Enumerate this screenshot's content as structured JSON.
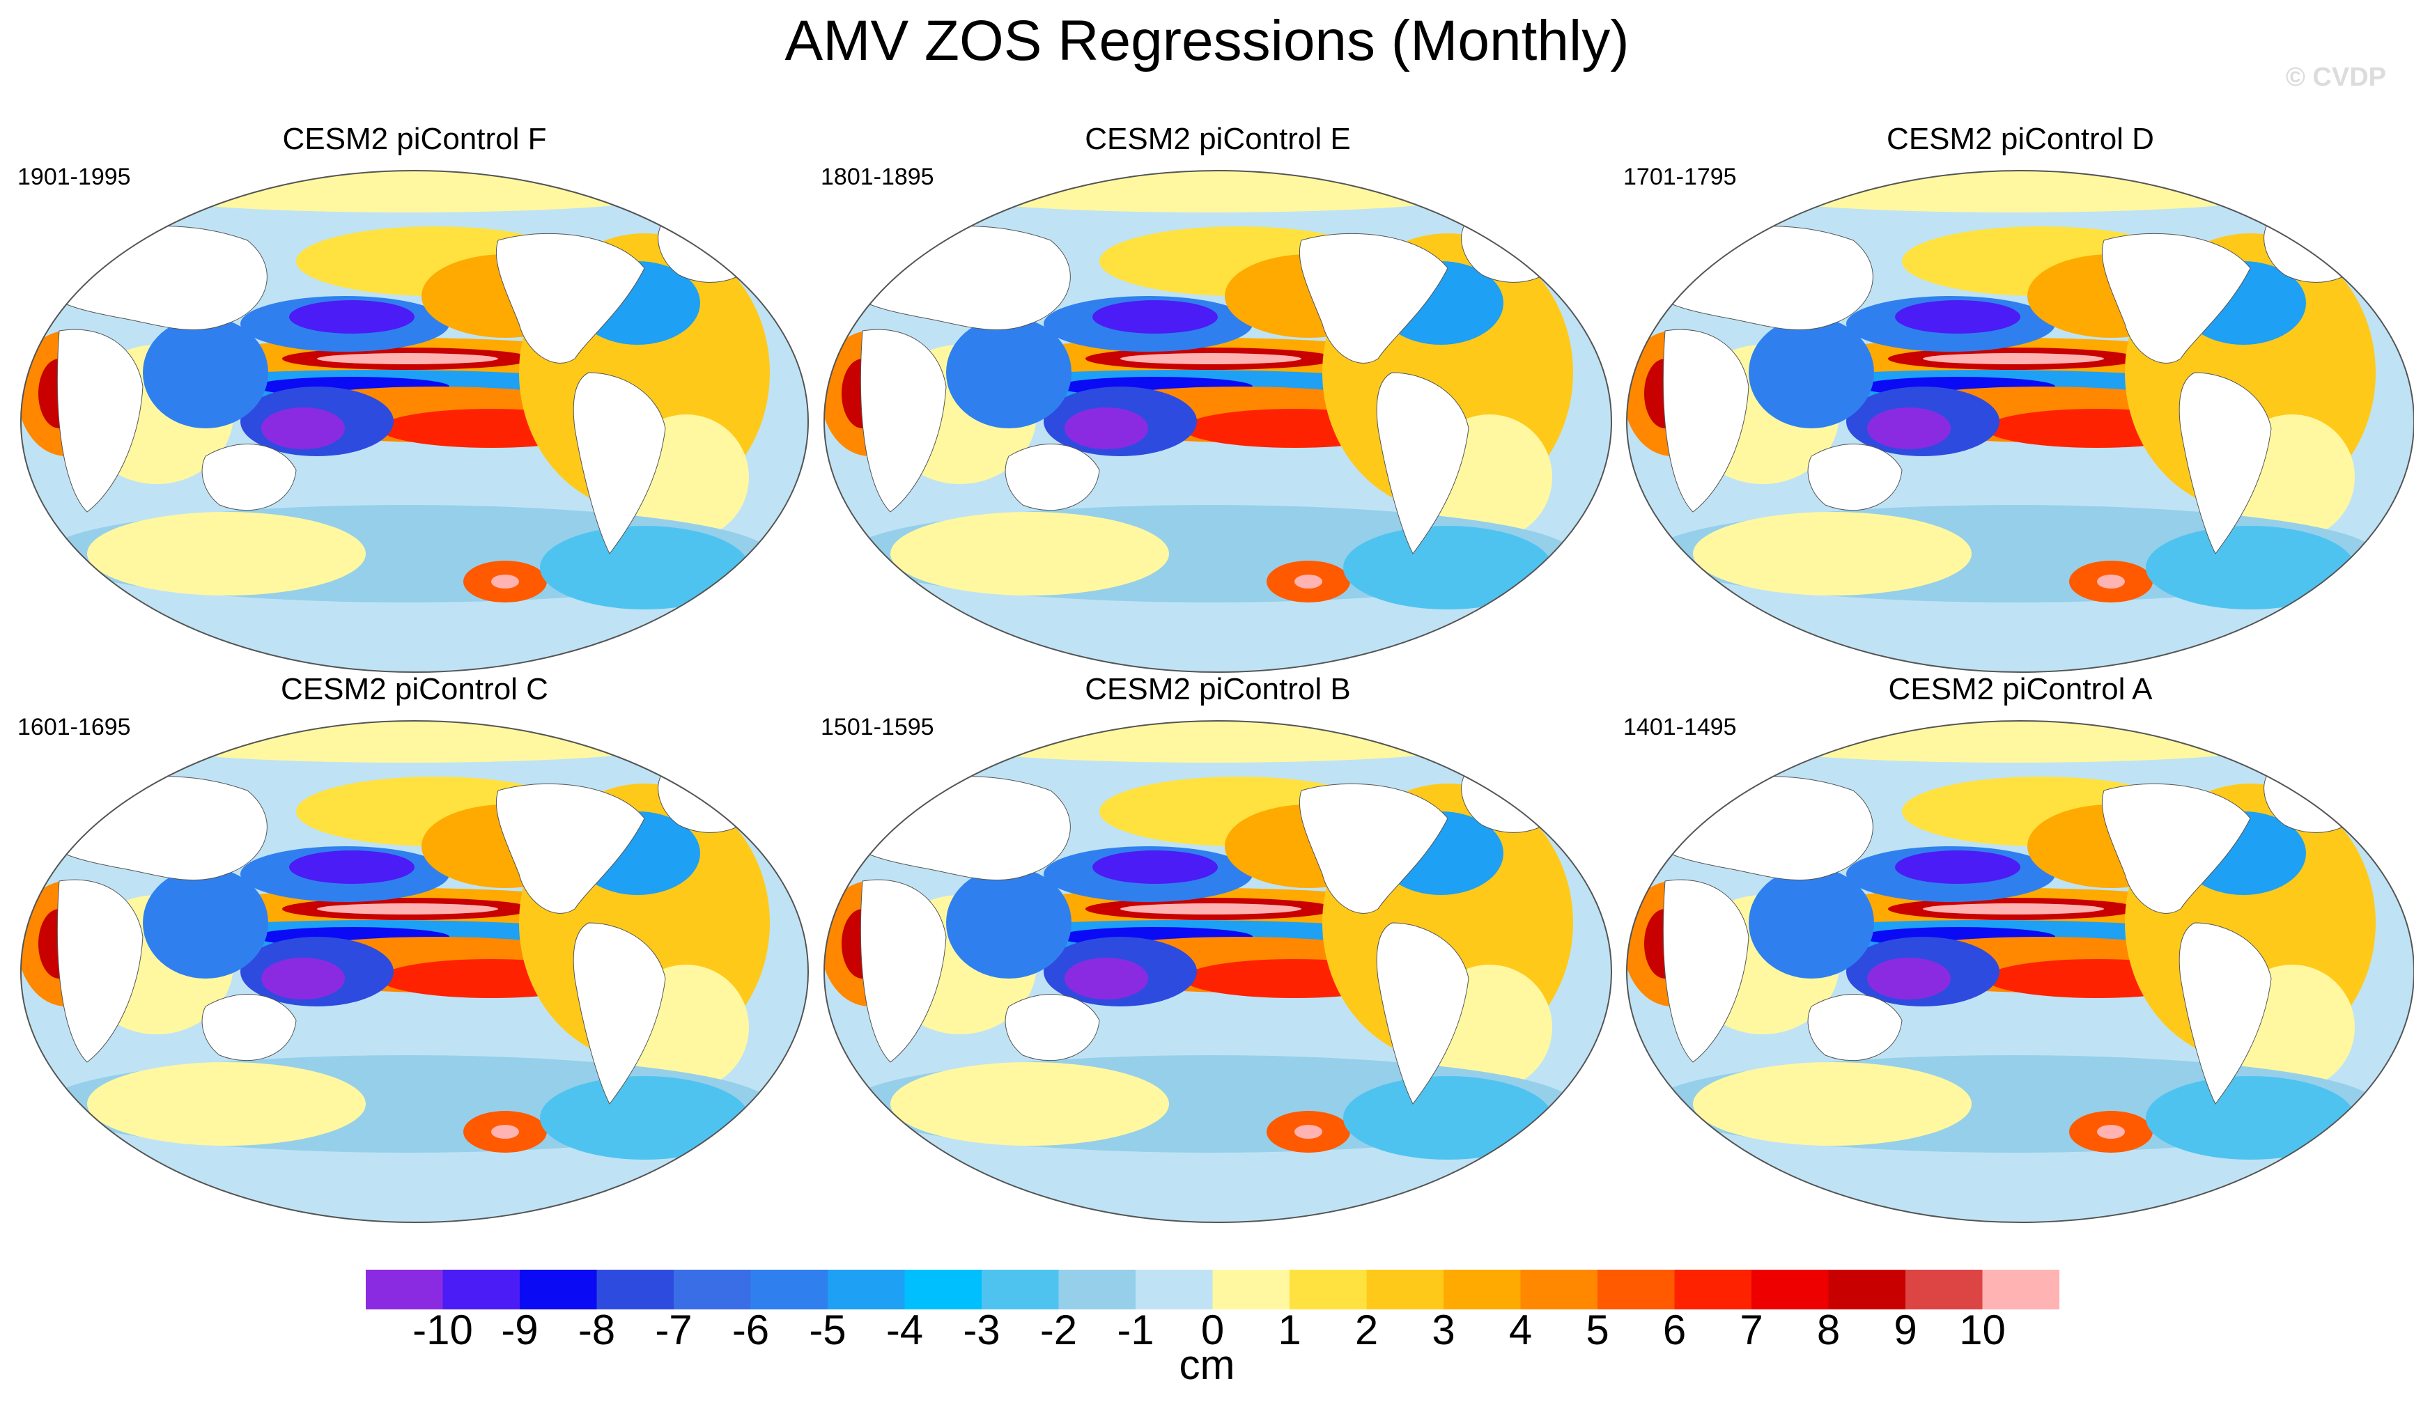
{
  "title": "AMV ZOS Regressions (Monthly)",
  "watermark": "© CVDP",
  "panels": [
    {
      "title": "CESM2 piControl F",
      "period": "1901-1995"
    },
    {
      "title": "CESM2 piControl E",
      "period": "1801-1895"
    },
    {
      "title": "CESM2 piControl D",
      "period": "1701-1795"
    },
    {
      "title": "CESM2 piControl C",
      "period": "1601-1695"
    },
    {
      "title": "CESM2 piControl B",
      "period": "1501-1595"
    },
    {
      "title": "CESM2 piControl A",
      "period": "1401-1495"
    }
  ],
  "colorbar": {
    "units": "cm",
    "ticks": [
      "-10",
      "-9",
      "-8",
      "-7",
      "-6",
      "-5",
      "-4",
      "-3",
      "-2",
      "-1",
      "0",
      "1",
      "2",
      "3",
      "4",
      "5",
      "6",
      "7",
      "8",
      "9",
      "10"
    ],
    "colors": [
      "#8a2be2",
      "#4b1cf5",
      "#0a0af5",
      "#2e4be0",
      "#3a6ee6",
      "#2f80ee",
      "#1ea0f5",
      "#00bfff",
      "#4fc3f0",
      "#96cfea",
      "#bfe3f5",
      "#fff8a0",
      "#ffe240",
      "#ffc91a",
      "#ffaa00",
      "#ff8800",
      "#ff5a00",
      "#ff2200",
      "#ee0000",
      "#c80000",
      "#dd4444",
      "#ffb3b3"
    ]
  }
}
